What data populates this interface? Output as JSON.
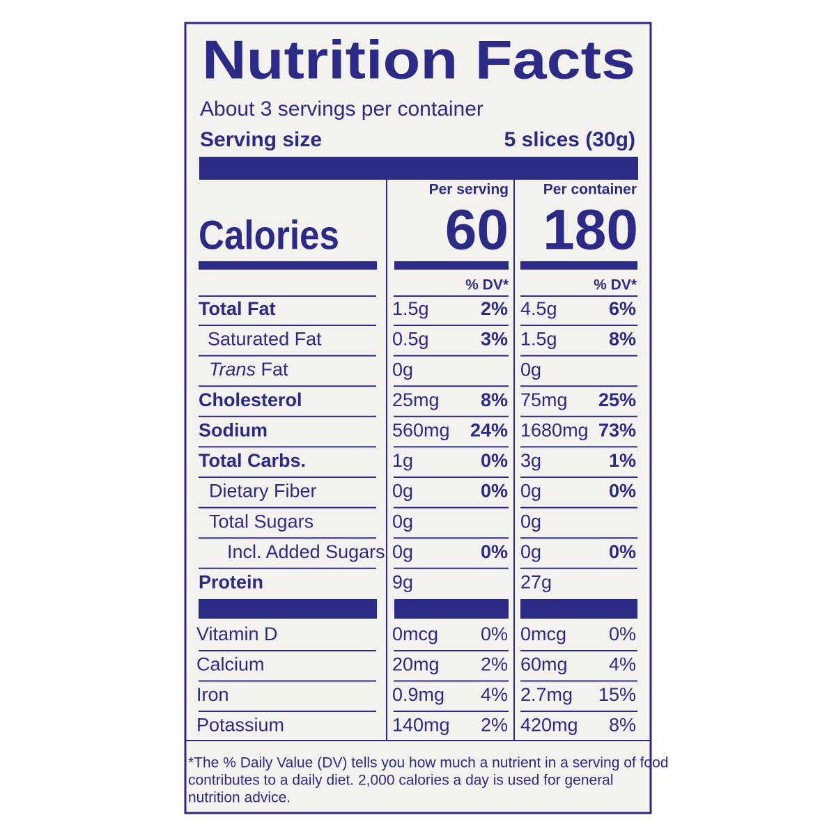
{
  "header": {
    "title": "Nutrition Facts",
    "servings": "About 3 servings per container",
    "serving_size_label": "Serving size",
    "serving_size": "5 slices (30g)"
  },
  "calories": {
    "per_serving_label": "Per serving",
    "per_container_label": "Per container",
    "label": "Calories",
    "per_serving": "60",
    "per_container": "180",
    "dv_label": "% DV*"
  },
  "nutrients": [
    {
      "name": "Total Fat",
      "serving_amount": "1.5g",
      "serving_dv": "2%",
      "container_amount": "4.5g",
      "container_dv": "6%"
    },
    {
      "name": "Saturated Fat",
      "serving_amount": "0.5g",
      "serving_dv": "3%",
      "container_amount": "1.5g",
      "container_dv": "8%"
    },
    {
      "name_prefix": "Trans",
      "name": "Fat",
      "serving_amount": "0g",
      "container_amount": "0g"
    },
    {
      "name": "Cholesterol",
      "serving_amount": "25mg",
      "serving_dv": "8%",
      "container_amount": "75mg",
      "container_dv": "25%"
    },
    {
      "name": "Sodium",
      "serving_amount": "560mg",
      "serving_dv": "24%",
      "container_amount": "1680mg",
      "container_dv": "73%"
    },
    {
      "name": "Total Carbs.",
      "serving_amount": "1g",
      "serving_dv": "0%",
      "container_amount": "3g",
      "container_dv": "1%"
    },
    {
      "name": "Dietary Fiber",
      "serving_amount": "0g",
      "serving_dv": "0%",
      "container_amount": "0g",
      "container_dv": "0%"
    },
    {
      "name": "Total Sugars",
      "serving_amount": "0g",
      "container_amount": "0g"
    },
    {
      "name": "Incl. Added Sugars",
      "serving_amount": "0g",
      "serving_dv": "0%",
      "container_amount": "0g",
      "container_dv": "0%"
    },
    {
      "name": "Protein",
      "serving_amount": "9g",
      "container_amount": "27g"
    }
  ],
  "vitamins": [
    {
      "name": "Vitamin D",
      "serving_amount": "0mcg",
      "serving_dv": "0%",
      "container_amount": "0mcg",
      "container_dv": "0%"
    },
    {
      "name": "Calcium",
      "serving_amount": "20mg",
      "serving_dv": "2%",
      "container_amount": "60mg",
      "container_dv": "4%"
    },
    {
      "name": "Iron",
      "serving_amount": "0.9mg",
      "serving_dv": "4%",
      "container_amount": "2.7mg",
      "container_dv": "15%"
    },
    {
      "name": "Potassium",
      "serving_amount": "140mg",
      "serving_dv": "2%",
      "container_amount": "420mg",
      "container_dv": "8%"
    }
  ],
  "footnote": [
    "*The % Daily Value (DV) tells you how much a nutrient in a serving of food",
    "contributes to a daily diet. 2,000 calories a day is used for general",
    "nutrition advice."
  ]
}
